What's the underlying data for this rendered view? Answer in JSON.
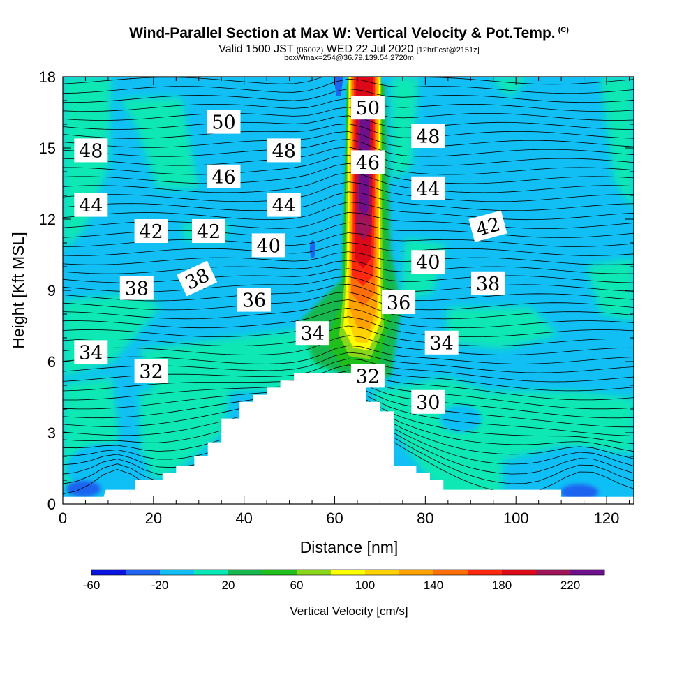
{
  "header": {
    "title": "Wind-Parallel Section at Max W: Vertical Velocity & Pot.Temp.",
    "copyright": "(C)",
    "subtitle_a": "Valid 1500 JST",
    "subtitle_b": "(0600Z)",
    "subtitle_c": "WED 22 Jul 2020",
    "subtitle_d": "[12hrFcst@2151z]",
    "subtitle_e": "boxWmax=254@36.79,139.54,2720m"
  },
  "chart_data": {
    "type": "heatmap",
    "xlabel": "Distance [nm]",
    "ylabel": "Height [Kft MSL]",
    "xlim": [
      0,
      126
    ],
    "ylim": [
      0,
      18
    ],
    "xticks": [
      0,
      20,
      40,
      60,
      80,
      100,
      120
    ],
    "yticks": [
      0,
      3,
      6,
      9,
      12,
      15,
      18
    ],
    "colorbar": {
      "label": "Vertical Velocity [cm/s]",
      "levels": [
        -60,
        -40,
        -20,
        0,
        20,
        40,
        60,
        80,
        100,
        120,
        140,
        160,
        180,
        200,
        220,
        240
      ],
      "tick_labels": [
        "-60",
        "-20",
        "20",
        "60",
        "100",
        "140",
        "180",
        "220"
      ],
      "colors": [
        "#0a14e0",
        "#1e64f0",
        "#11bff5",
        "#07e8b4",
        "#16b84e",
        "#1fbf1c",
        "#8ad61a",
        "#ffff00",
        "#ffd200",
        "#ffa200",
        "#ff6e0a",
        "#ff2810",
        "#dc0a18",
        "#a0145a",
        "#6e0f8c"
      ]
    },
    "terrain_profile": [
      [
        0,
        0.3
      ],
      [
        9,
        0.3
      ],
      [
        9.5,
        0.6
      ],
      [
        16,
        0.6
      ],
      [
        16,
        1.0
      ],
      [
        22,
        1.0
      ],
      [
        22,
        1.3
      ],
      [
        25,
        1.3
      ],
      [
        25,
        1.6
      ],
      [
        29,
        1.6
      ],
      [
        29,
        2.0
      ],
      [
        32,
        2.0
      ],
      [
        32,
        2.6
      ],
      [
        35,
        2.6
      ],
      [
        35,
        3.6
      ],
      [
        39,
        3.6
      ],
      [
        39,
        4.3
      ],
      [
        42,
        4.3
      ],
      [
        42,
        4.6
      ],
      [
        45,
        4.6
      ],
      [
        45,
        4.9
      ],
      [
        48,
        4.9
      ],
      [
        48,
        5.2
      ],
      [
        51,
        5.2
      ],
      [
        51,
        5.5
      ],
      [
        67,
        5.5
      ],
      [
        67,
        4.3
      ],
      [
        70,
        4.3
      ],
      [
        70,
        3.9
      ],
      [
        73,
        3.9
      ],
      [
        73,
        1.6
      ],
      [
        78,
        1.6
      ],
      [
        78,
        1.3
      ],
      [
        81,
        1.3
      ],
      [
        81,
        1.0
      ],
      [
        84,
        1.0
      ],
      [
        84,
        0.6
      ],
      [
        110,
        0.6
      ],
      [
        110,
        0.3
      ],
      [
        126,
        0.3
      ]
    ],
    "theta_labels": [
      {
        "value": "50",
        "x": 35.5,
        "y": 16.1,
        "rot": 0
      },
      {
        "value": "50",
        "x": 67.3,
        "y": 16.7,
        "rot": 0
      },
      {
        "value": "48",
        "x": 6.2,
        "y": 14.9,
        "rot": 0
      },
      {
        "value": "48",
        "x": 48.8,
        "y": 14.9,
        "rot": 0
      },
      {
        "value": "48",
        "x": 80.6,
        "y": 15.5,
        "rot": 0
      },
      {
        "value": "46",
        "x": 35.5,
        "y": 13.8,
        "rot": 0
      },
      {
        "value": "46",
        "x": 67.3,
        "y": 14.4,
        "rot": 0
      },
      {
        "value": "44",
        "x": 6.2,
        "y": 12.6,
        "rot": 0
      },
      {
        "value": "44",
        "x": 48.8,
        "y": 12.6,
        "rot": 0
      },
      {
        "value": "44",
        "x": 80.6,
        "y": 13.3,
        "rot": 0
      },
      {
        "value": "42",
        "x": 19.5,
        "y": 11.5,
        "rot": 0
      },
      {
        "value": "42",
        "x": 32.2,
        "y": 11.5,
        "rot": 0
      },
      {
        "value": "42",
        "x": 93.8,
        "y": 11.7,
        "rot": -15
      },
      {
        "value": "40",
        "x": 45.4,
        "y": 10.9,
        "rot": 0
      },
      {
        "value": "40",
        "x": 80.6,
        "y": 10.2,
        "rot": 0
      },
      {
        "value": "38",
        "x": 16.3,
        "y": 9.1,
        "rot": 0
      },
      {
        "value": "38",
        "x": 29.6,
        "y": 9.5,
        "rot": -25
      },
      {
        "value": "38",
        "x": 93.8,
        "y": 9.3,
        "rot": 0
      },
      {
        "value": "36",
        "x": 42.2,
        "y": 8.6,
        "rot": 0
      },
      {
        "value": "36",
        "x": 74.1,
        "y": 8.5,
        "rot": 0
      },
      {
        "value": "34",
        "x": 6.2,
        "y": 6.4,
        "rot": 0
      },
      {
        "value": "34",
        "x": 55.1,
        "y": 7.2,
        "rot": 0
      },
      {
        "value": "34",
        "x": 83.6,
        "y": 6.8,
        "rot": 0
      },
      {
        "value": "32",
        "x": 19.5,
        "y": 5.6,
        "rot": 0
      },
      {
        "value": "32",
        "x": 67.3,
        "y": 5.4,
        "rot": 0
      },
      {
        "value": "30",
        "x": 80.6,
        "y": 4.3,
        "rot": 0
      }
    ]
  }
}
